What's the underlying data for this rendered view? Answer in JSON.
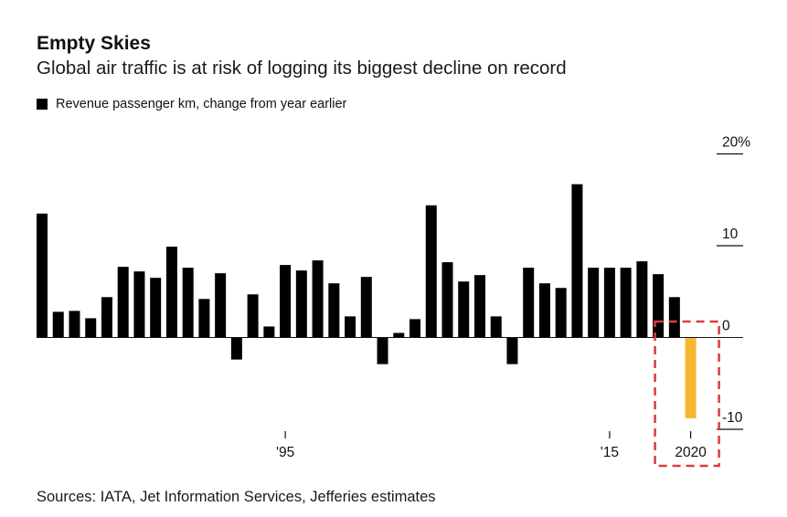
{
  "title": "Empty Skies",
  "subtitle": "Global air traffic is at risk of logging its biggest decline on record",
  "legend_label": "Revenue passenger km, change from year earlier",
  "source": "Sources: IATA, Jet Information Services, Jefferies estimates",
  "colors": {
    "bar": "#000000",
    "highlight": "#f7b731",
    "highlight_box": "#e03a3a"
  },
  "chart_data": {
    "type": "bar",
    "xlabel": "",
    "ylabel": "Revenue passenger km, change from year earlier",
    "ylim": [
      -10,
      20
    ],
    "y_ticks": [
      {
        "value": 20,
        "label": "20%"
      },
      {
        "value": 10,
        "label": "10"
      },
      {
        "value": 0,
        "label": "0"
      },
      {
        "value": -10,
        "label": "-10"
      }
    ],
    "x_ticks": [
      {
        "category": "1995",
        "label": "'95"
      },
      {
        "category": "2015",
        "label": "'15"
      },
      {
        "category": "2020",
        "label": "2020"
      }
    ],
    "categories": [
      "1980",
      "1981",
      "1982",
      "1983",
      "1984",
      "1985",
      "1986",
      "1987",
      "1988",
      "1989",
      "1990",
      "1991",
      "1992",
      "1993",
      "1994",
      "1995",
      "1996",
      "1997",
      "1998",
      "1999",
      "2000",
      "2001",
      "2002",
      "2003",
      "2004",
      "2005",
      "2006",
      "2007",
      "2008",
      "2009",
      "2010",
      "2011",
      "2012",
      "2013",
      "2014",
      "2015",
      "2016",
      "2017",
      "2018",
      "2019",
      "2020"
    ],
    "values": [
      13.5,
      2.8,
      2.9,
      2.1,
      4.4,
      7.7,
      7.2,
      6.5,
      9.9,
      7.6,
      4.2,
      7.0,
      -2.4,
      4.7,
      1.2,
      7.9,
      7.3,
      8.4,
      5.9,
      2.3,
      6.6,
      -2.9,
      0.5,
      2.0,
      14.4,
      8.2,
      6.1,
      6.8,
      2.3,
      -2.9,
      7.6,
      5.9,
      5.4,
      16.7,
      7.6,
      7.6,
      7.6,
      8.3,
      6.9,
      4.4,
      -8.8
    ],
    "highlight": {
      "category": "2020",
      "note": "Jefferies estimate"
    }
  }
}
